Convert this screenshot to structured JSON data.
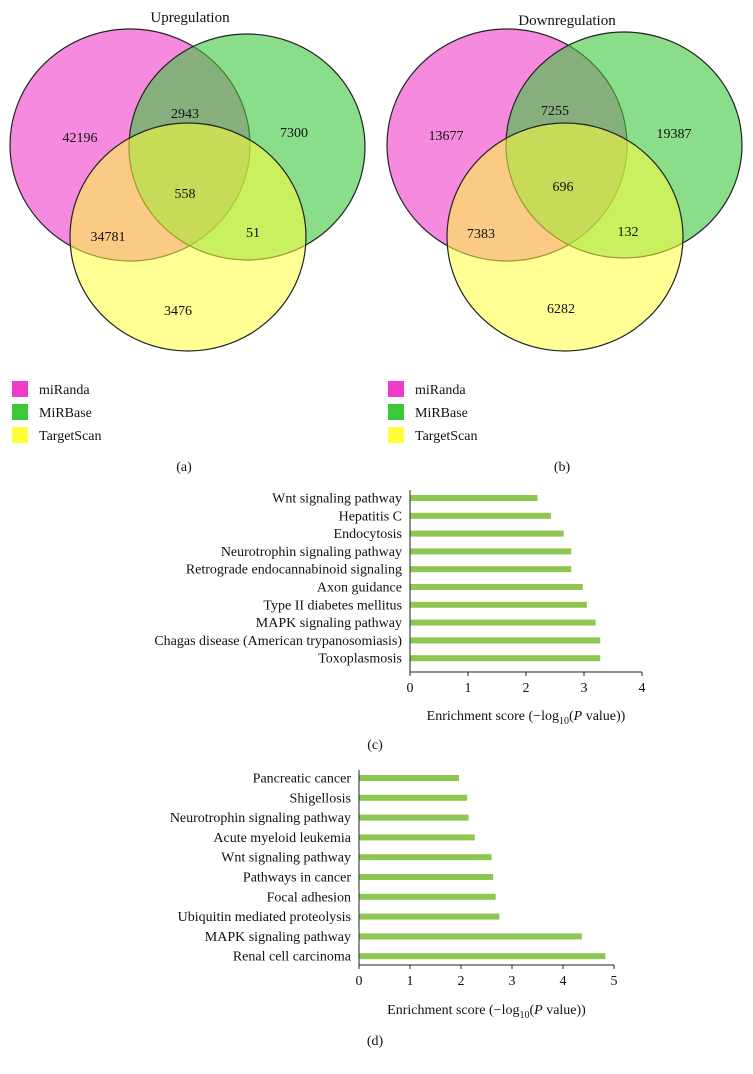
{
  "chart_data": [
    {
      "type": "venn",
      "title": "Upregulation",
      "panel_label": "(a)",
      "sets": [
        {
          "name": "miRanda",
          "color": "#f03cc8"
        },
        {
          "name": "MiRBase",
          "color": "#3cc83c"
        },
        {
          "name": "TargetScan",
          "color": "#ffff3c"
        }
      ],
      "regions": {
        "miRanda_only": "42196",
        "MiRBase_only": "7300",
        "TargetScan_only": "3476",
        "miRanda_MiRBase": "2943",
        "miRanda_TargetScan": "34781",
        "MiRBase_TargetScan": "51",
        "all": "558"
      }
    },
    {
      "type": "venn",
      "title": "Downregulation",
      "panel_label": "(b)",
      "sets": [
        {
          "name": "miRanda",
          "color": "#f03cc8"
        },
        {
          "name": "MiRBase",
          "color": "#3cc83c"
        },
        {
          "name": "TargetScan",
          "color": "#ffff3c"
        }
      ],
      "regions": {
        "miRanda_only": "13677",
        "MiRBase_only": "19387",
        "TargetScan_only": "6282",
        "miRanda_MiRBase": "7255",
        "miRanda_TargetScan": "7383",
        "MiRBase_TargetScan": "132",
        "all": "696"
      }
    },
    {
      "type": "bar",
      "orientation": "horizontal",
      "panel_label": "(c)",
      "categories": [
        "Wnt signaling pathway",
        "Hepatitis C",
        "Endocytosis",
        "Neurotrophin signaling pathway",
        "Retrograde endocannabinoid signaling",
        "Axon guidance",
        "Type II diabetes mellitus",
        "MAPK signaling pathway",
        "Chagas disease (American trypanosomiasis)",
        "Toxoplasmosis"
      ],
      "values": [
        2.2,
        2.43,
        2.65,
        2.78,
        2.78,
        2.98,
        3.05,
        3.2,
        3.28,
        3.28
      ],
      "xlim": [
        0,
        4
      ],
      "xticks": [
        "0",
        "1",
        "2",
        "3",
        "4"
      ],
      "xlabel": {
        "pre": "Enrichment score (−log",
        "sub": "10",
        "mid": "(",
        "ital": "P",
        "post": " value))"
      },
      "bar_color": "#8cc850"
    },
    {
      "type": "bar",
      "orientation": "horizontal",
      "panel_label": "(d)",
      "categories": [
        "Pancreatic cancer",
        "Shigellosis",
        "Neurotrophin signaling pathway",
        "Acute myeloid leukemia",
        "Wnt signaling pathway",
        "Pathways in cancer",
        "Focal adhesion",
        "Ubiquitin mediated proteolysis",
        "MAPK signaling pathway",
        "Renal cell carcinoma"
      ],
      "values": [
        1.96,
        2.12,
        2.15,
        2.27,
        2.6,
        2.63,
        2.68,
        2.75,
        4.37,
        4.83
      ],
      "xlim": [
        0,
        5
      ],
      "xticks": [
        "0",
        "1",
        "2",
        "3",
        "4",
        "5"
      ],
      "xlabel": {
        "pre": "Enrichment score (−log",
        "sub": "10",
        "mid": "(",
        "ital": "P",
        "post": " value))"
      },
      "bar_color": "#8cc850"
    }
  ]
}
